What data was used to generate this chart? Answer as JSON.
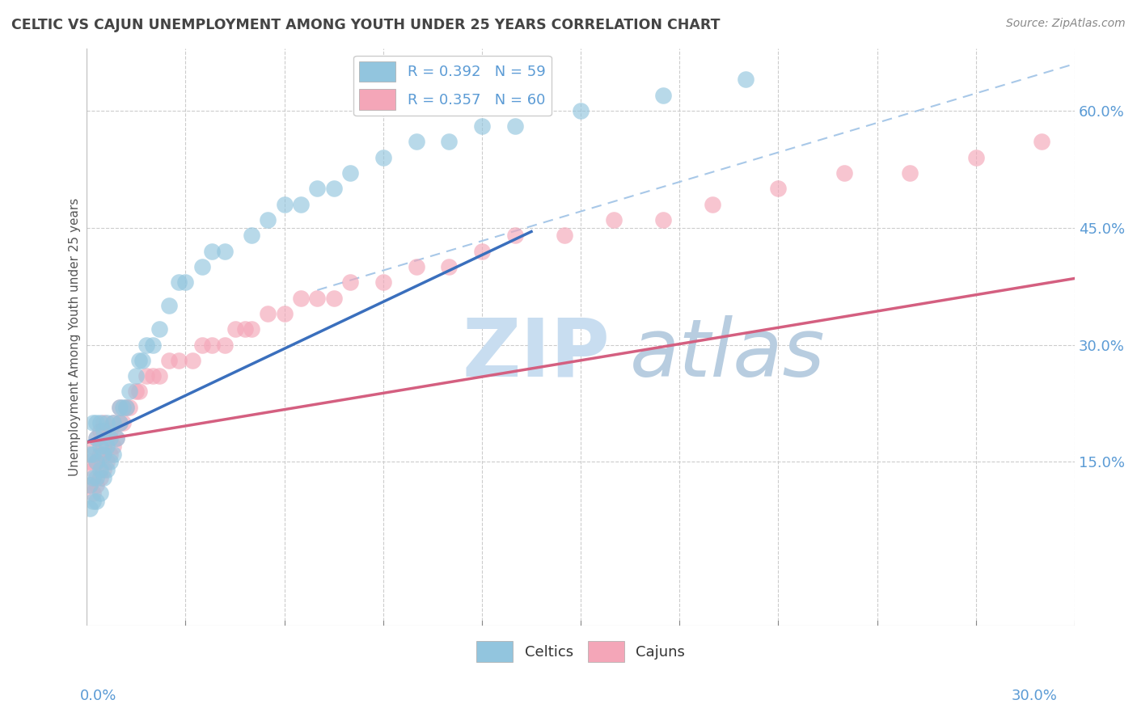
{
  "title": "CELTIC VS CAJUN UNEMPLOYMENT AMONG YOUTH UNDER 25 YEARS CORRELATION CHART",
  "source": "Source: ZipAtlas.com",
  "ylabel": "Unemployment Among Youth under 25 years",
  "right_yticklabels": [
    "15.0%",
    "30.0%",
    "45.0%",
    "60.0%"
  ],
  "right_ytick_vals": [
    0.15,
    0.3,
    0.45,
    0.6
  ],
  "xmin": 0.0,
  "xmax": 0.3,
  "ymin": -0.06,
  "ymax": 0.68,
  "legend_entry1": "R = 0.392   N = 59",
  "legend_entry2": "R = 0.357   N = 60",
  "legend_label1": "Celtics",
  "legend_label2": "Cajuns",
  "celtic_color": "#92c5de",
  "cajun_color": "#f4a6b8",
  "celtic_trend_color": "#3a6fbd",
  "cajun_trend_color": "#d45f80",
  "ref_line_color": "#a8c8e8",
  "background_color": "#ffffff",
  "grid_color": "#cccccc",
  "watermark_zip": "ZIP",
  "watermark_atlas": "atlas",
  "watermark_color_zip": "#c8ddf0",
  "watermark_color_atlas": "#b8cde0",
  "title_color": "#444444",
  "axis_color": "#5b9bd5",
  "celtics_x": [
    0.001,
    0.001,
    0.001,
    0.002,
    0.002,
    0.002,
    0.002,
    0.003,
    0.003,
    0.003,
    0.003,
    0.003,
    0.004,
    0.004,
    0.004,
    0.004,
    0.005,
    0.005,
    0.005,
    0.006,
    0.006,
    0.006,
    0.007,
    0.007,
    0.008,
    0.008,
    0.009,
    0.01,
    0.01,
    0.011,
    0.012,
    0.013,
    0.015,
    0.016,
    0.017,
    0.018,
    0.02,
    0.022,
    0.025,
    0.028,
    0.03,
    0.035,
    0.038,
    0.042,
    0.05,
    0.055,
    0.06,
    0.065,
    0.07,
    0.075,
    0.08,
    0.09,
    0.1,
    0.11,
    0.12,
    0.13,
    0.15,
    0.175,
    0.2
  ],
  "celtics_y": [
    0.09,
    0.12,
    0.16,
    0.1,
    0.13,
    0.16,
    0.2,
    0.1,
    0.13,
    0.15,
    0.18,
    0.2,
    0.11,
    0.14,
    0.17,
    0.2,
    0.13,
    0.16,
    0.19,
    0.14,
    0.17,
    0.2,
    0.15,
    0.18,
    0.16,
    0.2,
    0.18,
    0.2,
    0.22,
    0.22,
    0.22,
    0.24,
    0.26,
    0.28,
    0.28,
    0.3,
    0.3,
    0.32,
    0.35,
    0.38,
    0.38,
    0.4,
    0.42,
    0.42,
    0.44,
    0.46,
    0.48,
    0.48,
    0.5,
    0.5,
    0.52,
    0.54,
    0.56,
    0.56,
    0.58,
    0.58,
    0.6,
    0.62,
    0.64
  ],
  "cajuns_x": [
    0.001,
    0.001,
    0.002,
    0.002,
    0.002,
    0.003,
    0.003,
    0.003,
    0.004,
    0.004,
    0.004,
    0.005,
    0.005,
    0.005,
    0.006,
    0.006,
    0.007,
    0.007,
    0.008,
    0.008,
    0.009,
    0.01,
    0.01,
    0.011,
    0.012,
    0.013,
    0.015,
    0.016,
    0.018,
    0.02,
    0.022,
    0.025,
    0.028,
    0.032,
    0.035,
    0.038,
    0.042,
    0.045,
    0.048,
    0.05,
    0.055,
    0.06,
    0.065,
    0.07,
    0.075,
    0.08,
    0.09,
    0.1,
    0.11,
    0.12,
    0.13,
    0.145,
    0.16,
    0.175,
    0.19,
    0.21,
    0.23,
    0.25,
    0.27,
    0.29
  ],
  "cajuns_y": [
    0.12,
    0.15,
    0.11,
    0.14,
    0.17,
    0.12,
    0.15,
    0.18,
    0.13,
    0.16,
    0.19,
    0.14,
    0.17,
    0.2,
    0.15,
    0.18,
    0.16,
    0.19,
    0.17,
    0.2,
    0.18,
    0.2,
    0.22,
    0.2,
    0.22,
    0.22,
    0.24,
    0.24,
    0.26,
    0.26,
    0.26,
    0.28,
    0.28,
    0.28,
    0.3,
    0.3,
    0.3,
    0.32,
    0.32,
    0.32,
    0.34,
    0.34,
    0.36,
    0.36,
    0.36,
    0.38,
    0.38,
    0.4,
    0.4,
    0.42,
    0.44,
    0.44,
    0.46,
    0.46,
    0.48,
    0.5,
    0.52,
    0.52,
    0.54,
    0.56
  ],
  "celtic_trend_x": [
    0.0,
    0.135
  ],
  "celtic_trend_y": [
    0.175,
    0.445
  ],
  "cajun_trend_x": [
    0.0,
    0.3
  ],
  "cajun_trend_y": [
    0.175,
    0.385
  ],
  "ref_line_x": [
    0.07,
    0.3
  ],
  "ref_line_y": [
    0.37,
    0.66
  ]
}
